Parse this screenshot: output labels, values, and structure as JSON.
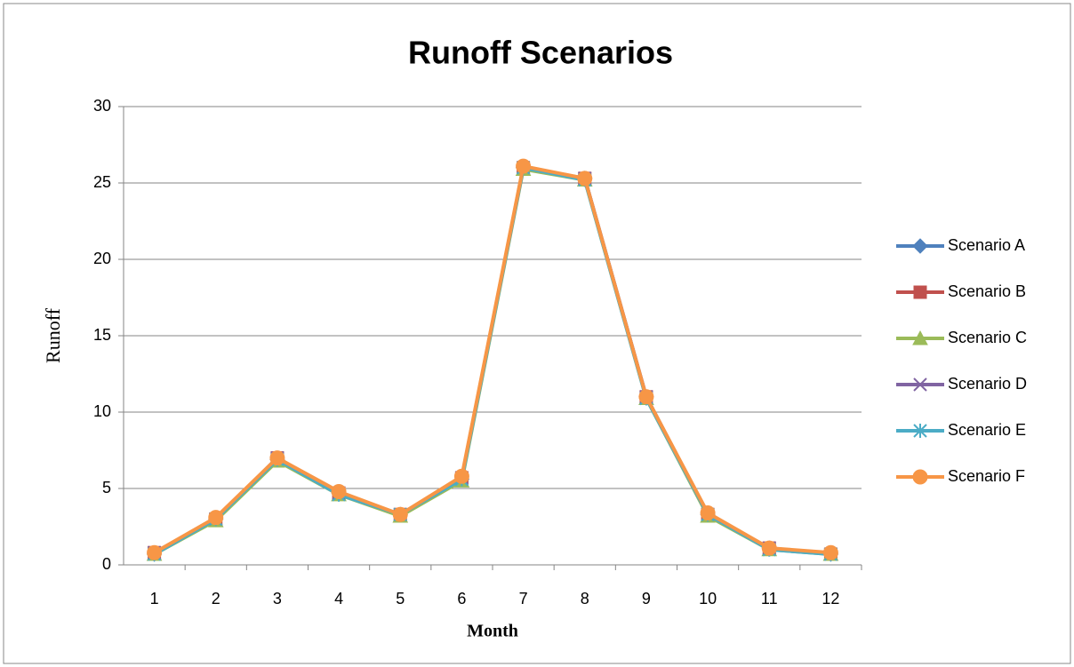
{
  "chart_data": {
    "type": "line",
    "title": "Runoff Scenarios",
    "x_label": "Month",
    "y_label": "Runoff",
    "categories": [
      "1",
      "2",
      "3",
      "4",
      "5",
      "6",
      "7",
      "8",
      "9",
      "10",
      "11",
      "12"
    ],
    "series": [
      {
        "name": "Scenario A",
        "color": "#4f81bd",
        "marker": "diamond",
        "values": [
          0.7,
          3.0,
          6.9,
          4.7,
          3.3,
          5.6,
          26.0,
          25.3,
          11.0,
          3.3,
          1.1,
          0.7
        ]
      },
      {
        "name": "Scenario B",
        "color": "#c0504d",
        "marker": "square",
        "values": [
          0.8,
          3.0,
          7.0,
          4.7,
          3.3,
          5.7,
          26.0,
          25.3,
          11.0,
          3.3,
          1.1,
          0.7
        ]
      },
      {
        "name": "Scenario C",
        "color": "#9bbb59",
        "marker": "triangle",
        "values": [
          0.7,
          2.9,
          6.8,
          4.6,
          3.2,
          5.5,
          25.9,
          25.2,
          10.9,
          3.2,
          1.0,
          0.7
        ]
      },
      {
        "name": "Scenario D",
        "color": "#8064a2",
        "marker": "x",
        "values": [
          0.8,
          3.0,
          7.0,
          4.7,
          3.3,
          5.7,
          26.0,
          25.3,
          11.0,
          3.3,
          1.1,
          0.7
        ]
      },
      {
        "name": "Scenario E",
        "color": "#4bacc6",
        "marker": "star",
        "values": [
          0.7,
          3.0,
          6.9,
          4.6,
          3.3,
          5.6,
          26.0,
          25.2,
          10.9,
          3.3,
          1.0,
          0.7
        ]
      },
      {
        "name": "Scenario F",
        "color": "#f79646",
        "marker": "circle",
        "values": [
          0.8,
          3.1,
          7.0,
          4.8,
          3.3,
          5.8,
          26.1,
          25.3,
          11.0,
          3.4,
          1.1,
          0.8
        ]
      }
    ],
    "ylim": [
      0,
      30
    ],
    "yticks": [
      0,
      5,
      10,
      15,
      20,
      25,
      30
    ],
    "grid": true,
    "legend": "right"
  }
}
